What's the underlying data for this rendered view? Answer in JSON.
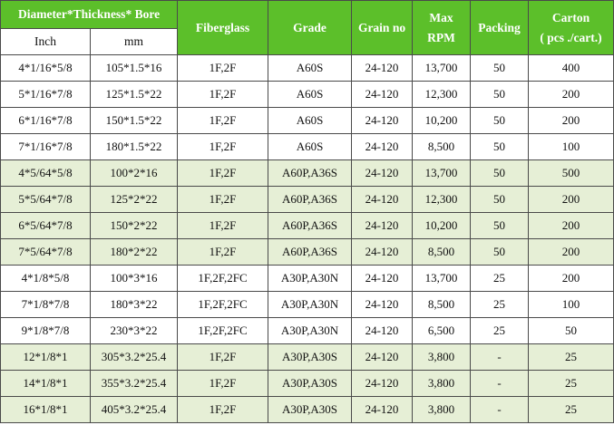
{
  "headers": {
    "dim_bore": "Diameter*Thickness* Bore",
    "inch": "Inch",
    "mm": "mm",
    "fiberglass": "Fiberglass",
    "grade": "Grade",
    "grain_no": "Grain no",
    "max_top": "Max",
    "max_bottom": "RPM",
    "packing": "Packing",
    "carton_top": "Carton",
    "carton_bottom": "( pcs ./cart.)"
  },
  "rows": [
    {
      "inch": "4*1/16*5/8",
      "mm": "105*1.5*16",
      "fiberglass": "1F,2F",
      "grade": "A60S",
      "grain": "24-120",
      "rpm": "13,700",
      "packing": "50",
      "carton": "400"
    },
    {
      "inch": "5*1/16*7/8",
      "mm": "125*1.5*22",
      "fiberglass": "1F,2F",
      "grade": "A60S",
      "grain": "24-120",
      "rpm": "12,300",
      "packing": "50",
      "carton": "200"
    },
    {
      "inch": "6*1/16*7/8",
      "mm": "150*1.5*22",
      "fiberglass": "1F,2F",
      "grade": "A60S",
      "grain": "24-120",
      "rpm": "10,200",
      "packing": "50",
      "carton": "200"
    },
    {
      "inch": "7*1/16*7/8",
      "mm": "180*1.5*22",
      "fiberglass": "1F,2F",
      "grade": "A60S",
      "grain": "24-120",
      "rpm": "8,500",
      "packing": "50",
      "carton": "100"
    },
    {
      "inch": "4*5/64*5/8",
      "mm": "100*2*16",
      "fiberglass": "1F,2F",
      "grade": "A60P,A36S",
      "grain": "24-120",
      "rpm": "13,700",
      "packing": "50",
      "carton": "500"
    },
    {
      "inch": "5*5/64*7/8",
      "mm": "125*2*22",
      "fiberglass": "1F,2F",
      "grade": "A60P,A36S",
      "grain": "24-120",
      "rpm": "12,300",
      "packing": "50",
      "carton": "200"
    },
    {
      "inch": "6*5/64*7/8",
      "mm": "150*2*22",
      "fiberglass": "1F,2F",
      "grade": "A60P,A36S",
      "grain": "24-120",
      "rpm": "10,200",
      "packing": "50",
      "carton": "200"
    },
    {
      "inch": "7*5/64*7/8",
      "mm": "180*2*22",
      "fiberglass": "1F,2F",
      "grade": "A60P,A36S",
      "grain": "24-120",
      "rpm": "8,500",
      "packing": "50",
      "carton": "200"
    },
    {
      "inch": "4*1/8*5/8",
      "mm": "100*3*16",
      "fiberglass": "1F,2F,2FC",
      "grade": "A30P,A30N",
      "grain": "24-120",
      "rpm": "13,700",
      "packing": "25",
      "carton": "200"
    },
    {
      "inch": "7*1/8*7/8",
      "mm": "180*3*22",
      "fiberglass": "1F,2F,2FC",
      "grade": "A30P,A30N",
      "grain": "24-120",
      "rpm": "8,500",
      "packing": "25",
      "carton": "100"
    },
    {
      "inch": "9*1/8*7/8",
      "mm": "230*3*22",
      "fiberglass": "1F,2F,2FC",
      "grade": "A30P,A30N",
      "grain": "24-120",
      "rpm": "6,500",
      "packing": "25",
      "carton": "50"
    },
    {
      "inch": "12*1/8*1",
      "mm": "305*3.2*25.4",
      "fiberglass": "1F,2F",
      "grade": "A30P,A30S",
      "grain": "24-120",
      "rpm": "3,800",
      "packing": "-",
      "carton": "25"
    },
    {
      "inch": "14*1/8*1",
      "mm": "355*3.2*25.4",
      "fiberglass": "1F,2F",
      "grade": "A30P,A30S",
      "grain": "24-120",
      "rpm": "3,800",
      "packing": "-",
      "carton": "25"
    },
    {
      "inch": "16*1/8*1",
      "mm": "405*3.2*25.4",
      "fiberglass": "1F,2F",
      "grade": "A30P,A30S",
      "grain": "24-120",
      "rpm": "3,800",
      "packing": "-",
      "carton": "25"
    }
  ],
  "colors": {
    "header_green": "#5cbf2a",
    "group_tint": "#e6efd6"
  }
}
